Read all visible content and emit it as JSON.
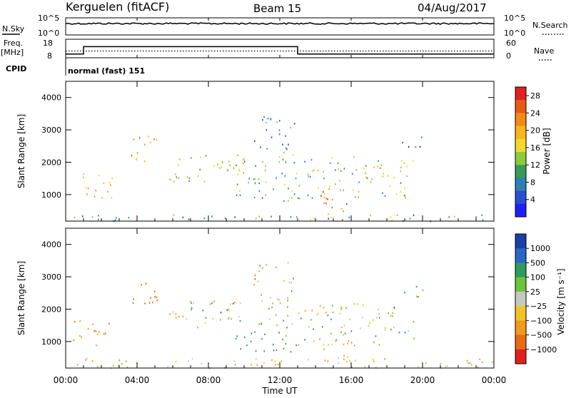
{
  "header": {
    "station": "Kerguelen (fitACF)",
    "beam": "Beam 15",
    "date": "04/Aug/2017"
  },
  "top_panels": {
    "nsky_label": "N.Sky",
    "nsky_ticks": [
      "10^5",
      "10^0"
    ],
    "nsearch_label": "N.Search",
    "nsearch_ticks": [
      "10^5",
      "10^0"
    ],
    "freq_label_1": "Freq.",
    "freq_label_2": "[MHz]",
    "freq_ticks": [
      "18",
      "8"
    ],
    "nave_label": "Nave",
    "nave_ticks": [
      "60",
      "0"
    ],
    "cpid_label": "CPID",
    "cpid_text": "normal (fast) 151"
  },
  "chart_data": [
    {
      "type": "line",
      "name": "freq_and_nave",
      "x_hours": [
        0,
        1,
        1,
        13,
        13,
        24
      ],
      "freq_mhz": [
        10,
        10,
        14,
        14,
        10,
        10
      ],
      "nave": [
        22,
        22,
        22,
        22,
        22,
        22
      ],
      "freq_range": [
        8,
        18
      ],
      "nave_range": [
        0,
        60
      ]
    },
    {
      "type": "heatmap",
      "name": "power",
      "ylabel": "Slant Range [km]",
      "xlabel": "",
      "xlim_hours": [
        0,
        24
      ],
      "ylim_km": [
        180,
        4500
      ],
      "y_ticks": [
        1000,
        2000,
        3000,
        4000
      ],
      "colorbar_label": "Power [dB]",
      "colorbar_ticks": [
        "4",
        "8",
        "12",
        "16",
        "20",
        "24",
        "28"
      ],
      "colorbar_range": [
        0,
        30
      ],
      "colors": [
        "#1f1fff",
        "#2b4fd0",
        "#2e7fb5",
        "#3a9a5a",
        "#8ccc3a",
        "#f2d82a",
        "#f7b61e",
        "#f28a16",
        "#ea5a14",
        "#e02020"
      ],
      "regions": [
        {
          "t0": 0.3,
          "t1": 2.6,
          "r0": 900,
          "r1": 1700,
          "db": 18
        },
        {
          "t0": 3.6,
          "t1": 5.2,
          "r0": 2000,
          "r1": 2900,
          "db": 22
        },
        {
          "t0": 5.8,
          "t1": 10.0,
          "r0": 1400,
          "r1": 2300,
          "db": 16
        },
        {
          "t0": 9.5,
          "t1": 13.0,
          "r0": 800,
          "r1": 2300,
          "db": 12
        },
        {
          "t0": 10.5,
          "t1": 12.8,
          "r0": 2300,
          "r1": 3500,
          "db": 8
        },
        {
          "t0": 13.0,
          "t1": 19.5,
          "r0": 900,
          "r1": 2200,
          "db": 14
        },
        {
          "t0": 14.2,
          "t1": 16.0,
          "r0": 350,
          "r1": 1300,
          "db": 24
        },
        {
          "t0": 18.8,
          "t1": 20.0,
          "r0": 2400,
          "r1": 2900,
          "db": 6
        },
        {
          "t0": 0.0,
          "t1": 24.0,
          "r0": 200,
          "r1": 400,
          "db": 10
        }
      ]
    },
    {
      "type": "heatmap",
      "name": "velocity",
      "ylabel": "Slant Range [km]",
      "xlabel": "Time UT",
      "xlim_hours": [
        0,
        24
      ],
      "ylim_km": [
        180,
        4500
      ],
      "y_ticks": [
        1000,
        2000,
        3000,
        4000
      ],
      "x_tick_labels": [
        "00:00",
        "04:00",
        "08:00",
        "12:00",
        "16:00",
        "20:00",
        "00:00"
      ],
      "x_tick_hours": [
        0,
        4,
        8,
        12,
        16,
        20,
        24
      ],
      "colorbar_label": "Velocity [m s⁻¹]",
      "colorbar_ticks": [
        "1000",
        "500",
        "100",
        "25",
        "−25",
        "−100",
        "−500",
        "−1000"
      ],
      "colors": [
        "#1a3fa8",
        "#2a66c8",
        "#2f9a5e",
        "#6cc43a",
        "#c8c8c0",
        "#f2c22a",
        "#f29a1a",
        "#ea6a14",
        "#e02020"
      ],
      "regions": [
        {
          "t0": 0.3,
          "t1": 2.6,
          "r0": 900,
          "r1": 1700,
          "v": -300
        },
        {
          "t0": 3.6,
          "t1": 5.2,
          "r0": 2000,
          "r1": 2900,
          "v": -600
        },
        {
          "t0": 5.8,
          "t1": 10.0,
          "r0": 1400,
          "r1": 2300,
          "v": 0
        },
        {
          "t0": 8.6,
          "t1": 9.4,
          "r0": 1900,
          "r1": 2300,
          "v": -900
        },
        {
          "t0": 9.5,
          "t1": 13.0,
          "r0": 700,
          "r1": 1500,
          "v": 150
        },
        {
          "t0": 10.5,
          "t1": 12.8,
          "r0": 1500,
          "r1": 3500,
          "v": 0
        },
        {
          "t0": 13.0,
          "t1": 19.5,
          "r0": 900,
          "r1": 2200,
          "v": 0
        },
        {
          "t0": 14.2,
          "t1": 16.0,
          "r0": 350,
          "r1": 1000,
          "v": 0
        },
        {
          "t0": 18.8,
          "t1": 20.0,
          "r0": 2400,
          "r1": 2900,
          "v": 0
        },
        {
          "t0": 0.0,
          "t1": 24.0,
          "r0": 200,
          "r1": 500,
          "v": -60
        }
      ]
    }
  ]
}
